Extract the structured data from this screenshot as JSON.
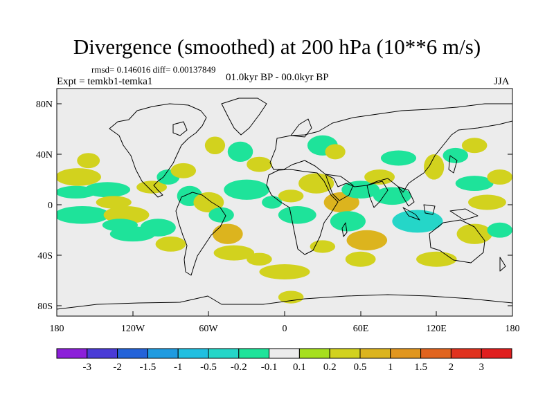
{
  "title": "Divergence (smoothed) at 200 hPa (10**6 m/s)",
  "stats": "rmsd= 0.146016 diff= 0.00137849",
  "experiment": "Expt = temkb1-temka1",
  "period": "01.0kyr BP - 00.0kyr BP",
  "season": "JJA",
  "axes": {
    "lat_labels": [
      "80N",
      "40N",
      "0",
      "40S",
      "80S"
    ],
    "lon_labels": [
      "180",
      "120W",
      "60W",
      "0",
      "60E",
      "120E",
      "180"
    ]
  },
  "colorbar": {
    "colors": [
      "#8c1fd9",
      "#4a3bd6",
      "#2463d9",
      "#1f9be0",
      "#20bfe0",
      "#25d6c8",
      "#1ee39a",
      "#ececec",
      "#a6df1e",
      "#d2d21e",
      "#dcb41e",
      "#e1961e",
      "#e1641e",
      "#e0321e",
      "#e01e1e"
    ],
    "labels": [
      "-3",
      "-2",
      "-1.5",
      "-1",
      "-0.5",
      "-0.2",
      "-0.1",
      "0.1",
      "0.2",
      "0.5",
      "1",
      "1.5",
      "2",
      "3"
    ]
  },
  "chart_data": {
    "type": "heatmap",
    "title": "Divergence (smoothed) at 200 hPa (10**6 m/s)",
    "variable": "200 hPa divergence difference",
    "units": "10**6 m/s",
    "lon_range": [
      -180,
      180
    ],
    "lat_range": [
      -90,
      90
    ],
    "contour_levels": [
      -3,
      -2,
      -1.5,
      -1,
      -0.5,
      -0.2,
      -0.1,
      0.1,
      0.2,
      0.5,
      1,
      1.5,
      2,
      3
    ],
    "features": [
      {
        "lon": -163,
        "lat": 20,
        "rx": 18,
        "ry": 7,
        "level": 0.2
      },
      {
        "lon": -165,
        "lat": 8,
        "rx": 16,
        "ry": 5,
        "level": -0.2
      },
      {
        "lon": -160,
        "lat": -10,
        "rx": 22,
        "ry": 7,
        "level": -0.2
      },
      {
        "lon": -140,
        "lat": 10,
        "rx": 18,
        "ry": 6,
        "level": -0.2
      },
      {
        "lon": -135,
        "lat": 0,
        "rx": 14,
        "ry": 5,
        "level": 0.2
      },
      {
        "lon": -125,
        "lat": -10,
        "rx": 18,
        "ry": 7,
        "level": 0.2
      },
      {
        "lon": -130,
        "lat": -18,
        "rx": 14,
        "ry": 5,
        "level": -0.2
      },
      {
        "lon": -120,
        "lat": -25,
        "rx": 18,
        "ry": 6,
        "level": -0.2
      },
      {
        "lon": -155,
        "lat": 33,
        "rx": 9,
        "ry": 6,
        "level": 0.2
      },
      {
        "lon": -105,
        "lat": 12,
        "rx": 12,
        "ry": 5,
        "level": 0.2
      },
      {
        "lon": -92,
        "lat": 20,
        "rx": 9,
        "ry": 6,
        "level": -0.2
      },
      {
        "lon": -80,
        "lat": 25,
        "rx": 10,
        "ry": 6,
        "level": 0.2
      },
      {
        "lon": -100,
        "lat": -20,
        "rx": 14,
        "ry": 7,
        "level": -0.2
      },
      {
        "lon": -90,
        "lat": -33,
        "rx": 12,
        "ry": 6,
        "level": 0.2
      },
      {
        "lon": -75,
        "lat": 5,
        "rx": 10,
        "ry": 8,
        "level": -0.2
      },
      {
        "lon": -60,
        "lat": 0,
        "rx": 12,
        "ry": 8,
        "level": 0.2
      },
      {
        "lon": -50,
        "lat": -10,
        "rx": 10,
        "ry": 6,
        "level": -0.2
      },
      {
        "lon": -30,
        "lat": 10,
        "rx": 18,
        "ry": 8,
        "level": -0.2
      },
      {
        "lon": -45,
        "lat": -25,
        "rx": 12,
        "ry": 8,
        "level": 0.5
      },
      {
        "lon": -35,
        "lat": 40,
        "rx": 10,
        "ry": 8,
        "level": -0.2
      },
      {
        "lon": -55,
        "lat": 45,
        "rx": 8,
        "ry": 7,
        "level": 0.2
      },
      {
        "lon": -20,
        "lat": 30,
        "rx": 10,
        "ry": 6,
        "level": 0.2
      },
      {
        "lon": -40,
        "lat": -40,
        "rx": 16,
        "ry": 6,
        "level": 0.2
      },
      {
        "lon": -10,
        "lat": 0,
        "rx": 8,
        "ry": 5,
        "level": -0.2
      },
      {
        "lon": 5,
        "lat": 5,
        "rx": 10,
        "ry": 5,
        "level": 0.2
      },
      {
        "lon": 10,
        "lat": -10,
        "rx": 15,
        "ry": 7,
        "level": -0.2
      },
      {
        "lon": 30,
        "lat": 45,
        "rx": 12,
        "ry": 8,
        "level": -0.2
      },
      {
        "lon": 40,
        "lat": 40,
        "rx": 8,
        "ry": 6,
        "level": 0.2
      },
      {
        "lon": 25,
        "lat": 15,
        "rx": 14,
        "ry": 8,
        "level": 0.2
      },
      {
        "lon": 45,
        "lat": 0,
        "rx": 14,
        "ry": 8,
        "level": 0.5
      },
      {
        "lon": 60,
        "lat": 10,
        "rx": 15,
        "ry": 7,
        "level": -0.2
      },
      {
        "lon": 50,
        "lat": -15,
        "rx": 14,
        "ry": 8,
        "level": -0.2
      },
      {
        "lon": 65,
        "lat": -30,
        "rx": 16,
        "ry": 8,
        "level": 0.5
      },
      {
        "lon": 30,
        "lat": -35,
        "rx": 10,
        "ry": 5,
        "level": 0.2
      },
      {
        "lon": 75,
        "lat": 20,
        "rx": 12,
        "ry": 6,
        "level": 0.2
      },
      {
        "lon": 85,
        "lat": 5,
        "rx": 15,
        "ry": 7,
        "level": -0.2
      },
      {
        "lon": 105,
        "lat": -15,
        "rx": 20,
        "ry": 9,
        "level": -0.5
      },
      {
        "lon": 118,
        "lat": 28,
        "rx": 8,
        "ry": 10,
        "level": 0.2
      },
      {
        "lon": 135,
        "lat": 37,
        "rx": 10,
        "ry": 6,
        "level": -0.2
      },
      {
        "lon": 150,
        "lat": 15,
        "rx": 15,
        "ry": 6,
        "level": -0.2
      },
      {
        "lon": 160,
        "lat": 0,
        "rx": 15,
        "ry": 6,
        "level": 0.2
      },
      {
        "lon": 150,
        "lat": -25,
        "rx": 14,
        "ry": 8,
        "level": 0.2
      },
      {
        "lon": 170,
        "lat": -22,
        "rx": 10,
        "ry": 6,
        "level": -0.2
      },
      {
        "lon": 90,
        "lat": 35,
        "rx": 14,
        "ry": 6,
        "level": -0.2
      },
      {
        "lon": 150,
        "lat": 45,
        "rx": 10,
        "ry": 6,
        "level": 0.2
      },
      {
        "lon": 120,
        "lat": -45,
        "rx": 16,
        "ry": 6,
        "level": 0.2
      },
      {
        "lon": 0,
        "lat": -55,
        "rx": 20,
        "ry": 6,
        "level": 0.2
      },
      {
        "lon": 60,
        "lat": -45,
        "rx": 12,
        "ry": 6,
        "level": 0.2
      },
      {
        "lon": 5,
        "lat": -75,
        "rx": 10,
        "ry": 5,
        "level": 0.2
      },
      {
        "lon": -20,
        "lat": -45,
        "rx": 10,
        "ry": 5,
        "level": 0.2
      },
      {
        "lon": 170,
        "lat": 20,
        "rx": 10,
        "ry": 6,
        "level": 0.2
      }
    ]
  }
}
